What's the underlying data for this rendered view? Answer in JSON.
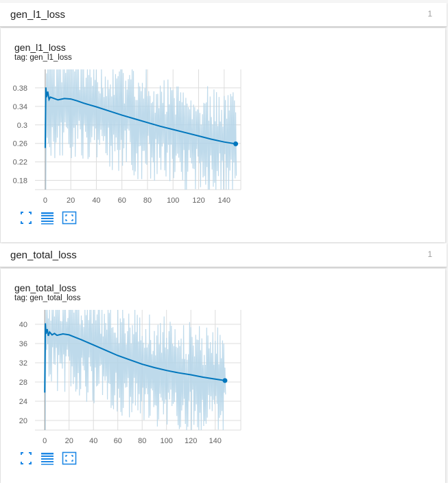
{
  "colors": {
    "accent": "#0277bd",
    "band": "#b3d4e8"
  },
  "sections": [
    {
      "title": "gen_l1_loss",
      "count": "1",
      "card": {
        "title": "gen_l1_loss",
        "tag": "tag: gen_l1_loss",
        "icons": [
          "expand-icon",
          "data-table-icon",
          "fit-domain-icon"
        ]
      },
      "chart_data": {
        "type": "line",
        "title": "gen_l1_loss",
        "xlabel": "",
        "ylabel": "",
        "xlim": [
          -8,
          153
        ],
        "ylim": [
          0.16,
          0.42
        ],
        "x_ticks": [
          0,
          20,
          40,
          60,
          80,
          100,
          120,
          140
        ],
        "y_ticks": [
          0.18,
          0.22,
          0.26,
          0.3,
          0.34,
          0.38
        ],
        "y_tick_labels": [
          "0.18",
          "0.22",
          "0.26",
          "0.3",
          "0.34",
          "0.38"
        ],
        "grid": true,
        "series": [
          {
            "x": [
              0,
              0.5,
              1,
              2,
              3,
              4,
              6,
              8,
              10,
              15,
              20,
              25,
              30,
              40,
              50,
              60,
              70,
              80,
              90,
              100,
              110,
              120,
              130,
              140,
              149
            ],
            "y": [
              0.25,
              0.381,
              0.36,
              0.372,
              0.355,
              0.36,
              0.358,
              0.356,
              0.354,
              0.357,
              0.356,
              0.352,
              0.347,
              0.339,
              0.33,
              0.321,
              0.313,
              0.305,
              0.297,
              0.29,
              0.283,
              0.276,
              0.269,
              0.263,
              0.259
            ]
          }
        ]
      }
    },
    {
      "title": "gen_total_loss",
      "count": "1",
      "card": {
        "title": "gen_total_loss",
        "tag": "tag: gen_total_loss",
        "icons": [
          "expand-icon",
          "data-table-icon",
          "fit-domain-icon"
        ]
      },
      "chart_data": {
        "type": "line",
        "title": "gen_total_loss",
        "xlabel": "",
        "ylabel": "",
        "xlim": [
          -8,
          161
        ],
        "ylim": [
          18,
          43
        ],
        "x_ticks": [
          0,
          20,
          40,
          60,
          80,
          100,
          120,
          140
        ],
        "y_ticks": [
          20,
          24,
          28,
          32,
          36,
          40
        ],
        "y_tick_labels": [
          "20",
          "24",
          "28",
          "32",
          "36",
          "40"
        ],
        "grid": true,
        "series": [
          {
            "x": [
              0,
              0.5,
              1,
              2,
              3,
              4,
              6,
              8,
              10,
              15,
              20,
              25,
              30,
              40,
              50,
              60,
              70,
              80,
              90,
              100,
              110,
              120,
              130,
              140,
              148
            ],
            "y": [
              25.8,
              40.2,
              38.0,
              39.0,
              37.6,
              38.4,
              37.8,
              38.1,
              37.7,
              38.0,
              37.8,
              37.3,
              36.8,
              35.7,
              34.6,
              33.5,
              32.6,
              31.7,
              31.0,
              30.4,
              29.9,
              29.5,
              29.0,
              28.6,
              28.3
            ]
          }
        ]
      }
    }
  ]
}
